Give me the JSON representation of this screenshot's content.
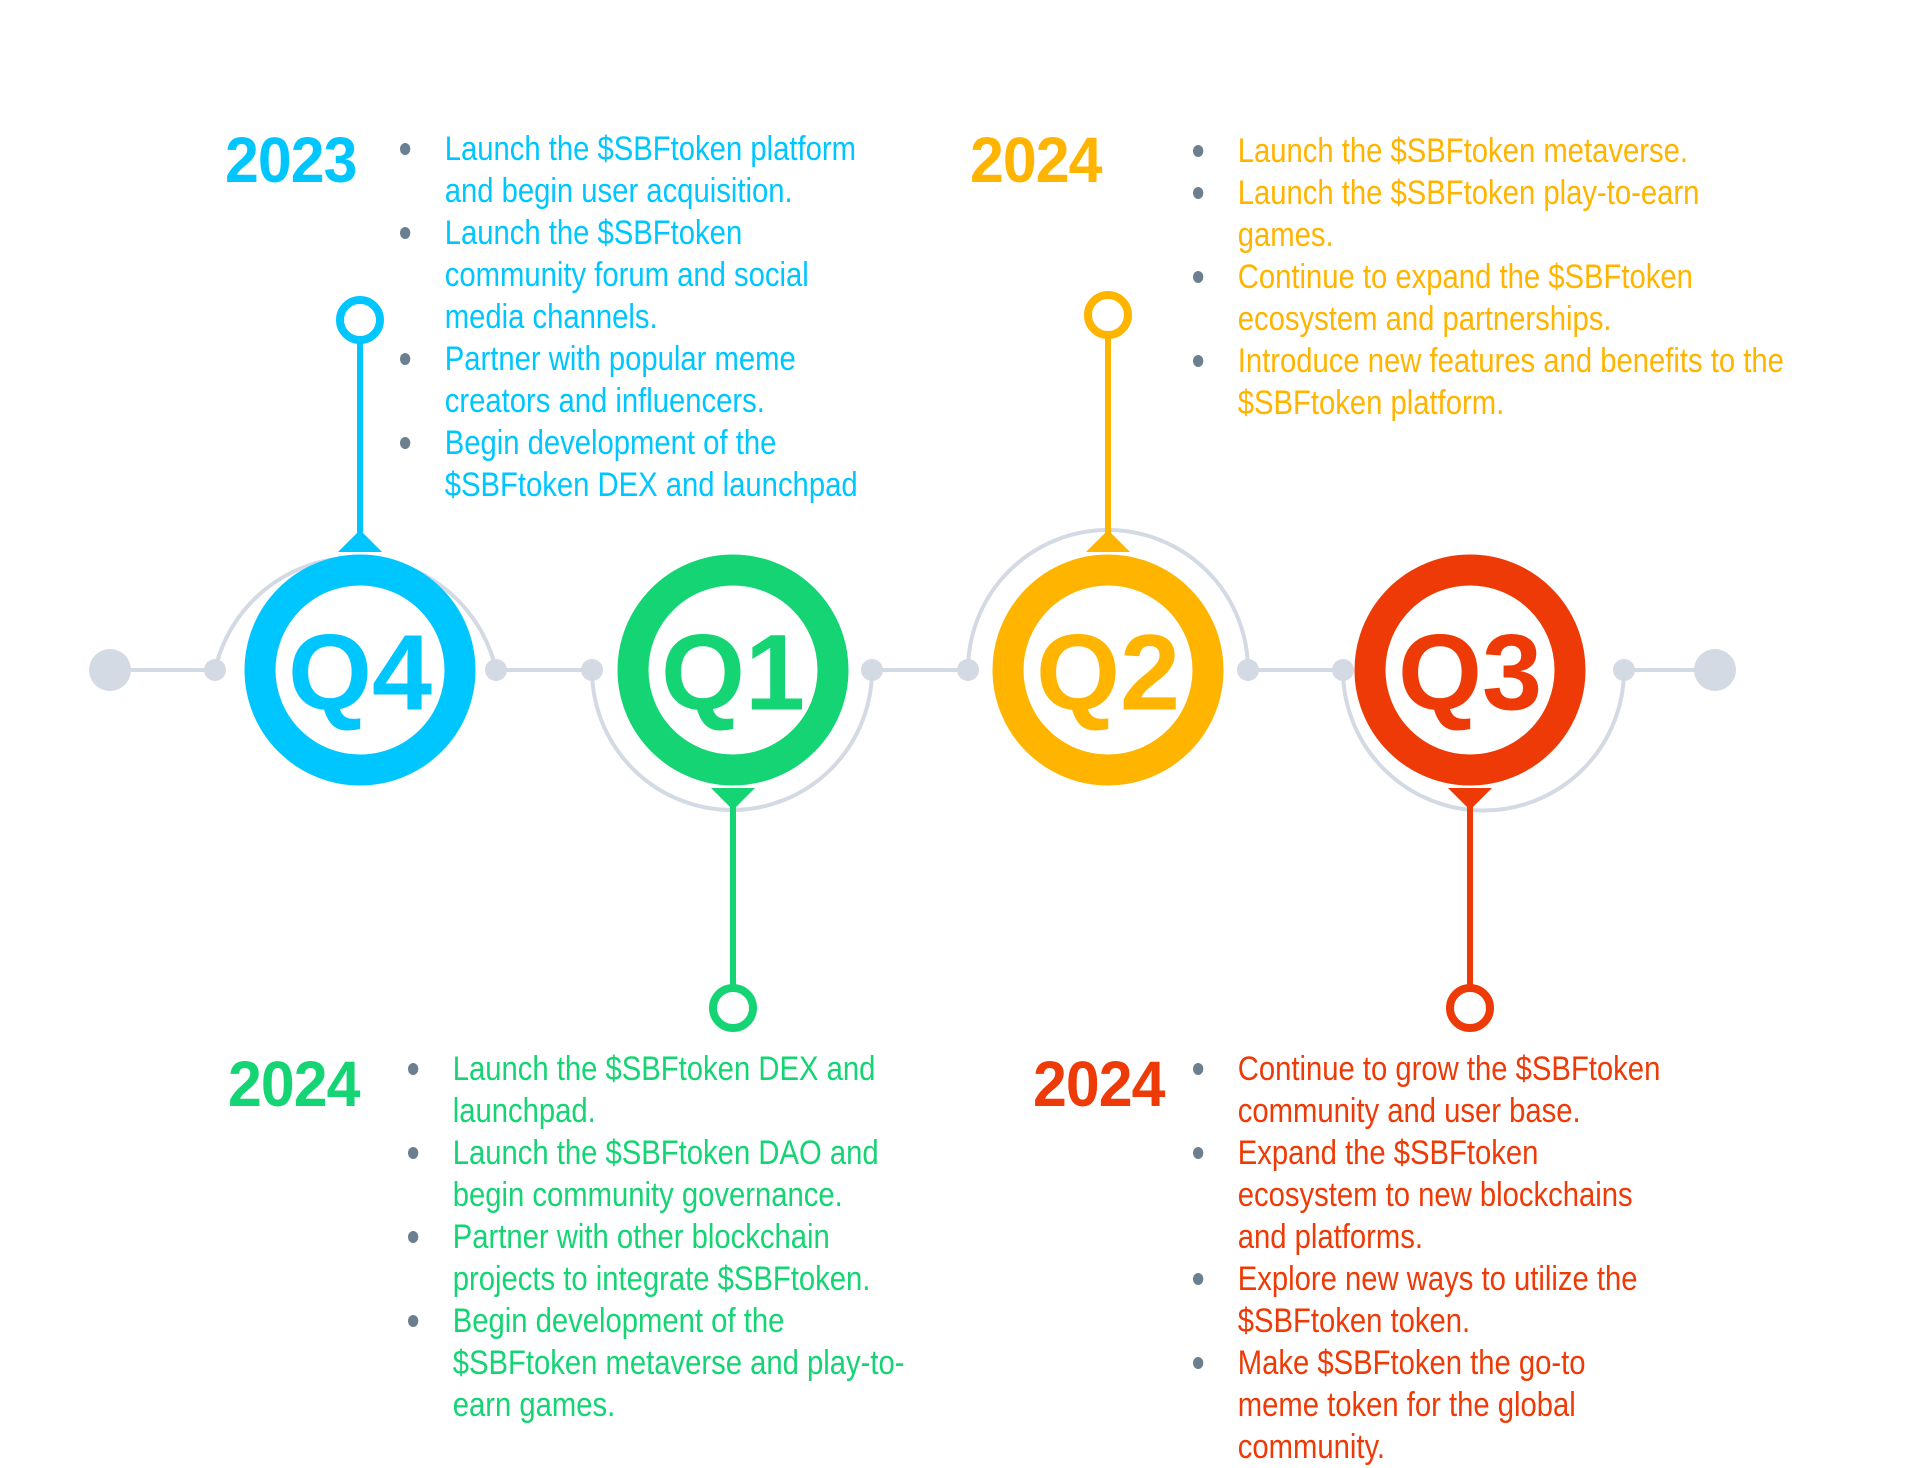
{
  "colors": {
    "q4": "#00c6ff",
    "q1": "#14d474",
    "q2": "#ffb400",
    "q3": "#ee3a06",
    "track": "#d3dae3",
    "bullet": "#6b7f8e"
  },
  "stages": [
    {
      "quarter": "Q4",
      "year": "2023",
      "color": "#00c6ff",
      "items": [
        "Launch the $SBFtoken platform and begin user acquisition.",
        "Launch the $SBFtoken community forum and social media channels.",
        "Partner with popular meme creators and influencers.",
        "Begin development of the $SBFtoken DEX and launchpad"
      ]
    },
    {
      "quarter": "Q1",
      "year": "2024",
      "color": "#14d474",
      "items": [
        "Launch the $SBFtoken DEX and launchpad.",
        "Launch the $SBFtoken DAO and begin community governance.",
        "Partner with other blockchain projects to integrate $SBFtoken.",
        "Begin development of the $SBFtoken metaverse and play-to-earn games."
      ]
    },
    {
      "quarter": "Q2",
      "year": "2024",
      "color": "#ffb400",
      "items": [
        "Launch the $SBFtoken metaverse.",
        "Launch the $SBFtoken play-to-earn games.",
        "Continue to expand the $SBFtoken ecosystem and partnerships.",
        "Introduce new features and benefits to the $SBFtoken platform."
      ]
    },
    {
      "quarter": "Q3",
      "year": "2024",
      "color": "#ee3a06",
      "items": [
        " Continue to grow the $SBFtoken community and user base.",
        "Expand the $SBFtoken ecosystem to new blockchains and platforms.",
        "Explore new ways to utilize the $SBFtoken token.",
        "Make $SBFtoken the go-to meme token for the global community."
      ]
    }
  ]
}
